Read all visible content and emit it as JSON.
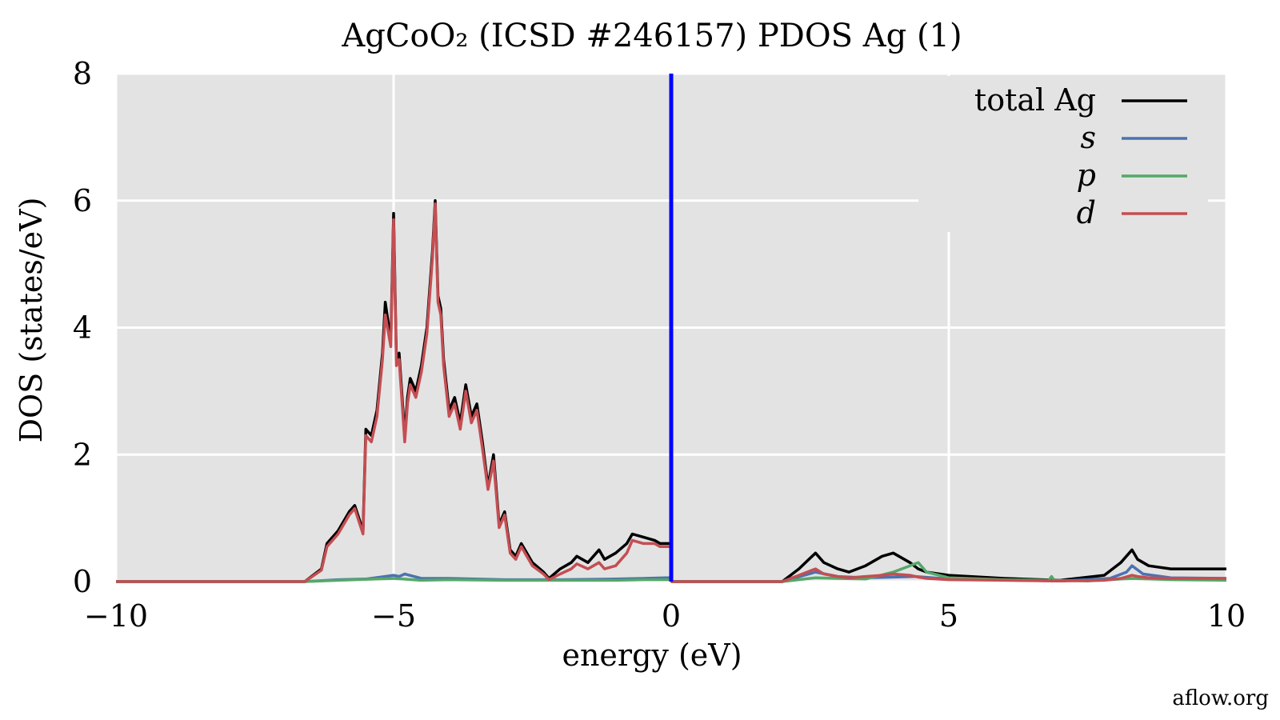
{
  "chart_data": {
    "type": "line",
    "title": "AgCoO₂ (ICSD #246157) PDOS Ag (1)",
    "xlabel": "energy (eV)",
    "ylabel": "DOS (states/eV)",
    "xlim": [
      -10,
      10
    ],
    "ylim": [
      0,
      8
    ],
    "xticks": [
      -10,
      -5,
      0,
      5,
      10
    ],
    "xtick_labels": [
      "−10",
      "−5",
      "0",
      "5",
      "10"
    ],
    "yticks": [
      0,
      2,
      4,
      6,
      8
    ],
    "ytick_labels": [
      "0",
      "2",
      "4",
      "6",
      "8"
    ],
    "grid": true,
    "legend_position": "top-right",
    "fermi_level": 0,
    "fermi_color": "#0000ff",
    "background": "#e3e3e3",
    "series": [
      {
        "name": "total Ag",
        "color": "#000000",
        "x": [
          -10,
          -6.6,
          -6.3,
          -6.2,
          -6.0,
          -5.8,
          -5.7,
          -5.55,
          -5.5,
          -5.4,
          -5.3,
          -5.2,
          -5.15,
          -5.05,
          -5.0,
          -4.95,
          -4.9,
          -4.8,
          -4.75,
          -4.7,
          -4.6,
          -4.5,
          -4.4,
          -4.3,
          -4.25,
          -4.2,
          -4.15,
          -4.1,
          -4.0,
          -3.9,
          -3.8,
          -3.7,
          -3.6,
          -3.5,
          -3.4,
          -3.3,
          -3.2,
          -3.1,
          -3.0,
          -2.9,
          -2.8,
          -2.7,
          -2.5,
          -2.3,
          -2.2,
          -2.0,
          -1.8,
          -1.7,
          -1.5,
          -1.3,
          -1.2,
          -1.0,
          -0.8,
          -0.7,
          -0.5,
          -0.3,
          -0.2,
          0.0,
          0.01,
          2.0,
          2.3,
          2.6,
          2.75,
          3.0,
          3.2,
          3.5,
          3.8,
          4.0,
          4.3,
          4.45,
          4.6,
          5.0,
          6.0,
          7.0,
          7.8,
          8.1,
          8.3,
          8.4,
          8.6,
          9.0,
          9.5,
          10
        ],
        "y": [
          0,
          0,
          0.2,
          0.6,
          0.8,
          1.1,
          1.2,
          0.8,
          2.4,
          2.3,
          2.7,
          3.6,
          4.4,
          3.8,
          5.8,
          3.5,
          3.6,
          2.3,
          2.9,
          3.2,
          3.0,
          3.4,
          4.0,
          5.2,
          6.0,
          4.5,
          4.3,
          3.5,
          2.7,
          2.9,
          2.5,
          3.1,
          2.6,
          2.8,
          2.2,
          1.5,
          2.0,
          0.9,
          1.1,
          0.5,
          0.4,
          0.6,
          0.3,
          0.15,
          0.05,
          0.2,
          0.3,
          0.4,
          0.3,
          0.5,
          0.35,
          0.45,
          0.6,
          0.75,
          0.7,
          0.65,
          0.6,
          0.6,
          0,
          0,
          0.2,
          0.45,
          0.3,
          0.2,
          0.15,
          0.25,
          0.4,
          0.45,
          0.3,
          0.2,
          0.15,
          0.1,
          0.05,
          0.02,
          0.1,
          0.3,
          0.5,
          0.35,
          0.25,
          0.2,
          0.2,
          0.2
        ]
      },
      {
        "name": "s",
        "color": "#4c72b0",
        "x": [
          -10,
          -6.6,
          -6.0,
          -5.5,
          -5.0,
          -4.9,
          -4.8,
          -4.5,
          -4.0,
          -3.0,
          -2.0,
          -1.0,
          -0.5,
          -0.1,
          0.0,
          0.01,
          2.0,
          2.6,
          3.0,
          3.5,
          4.0,
          4.4,
          5.0,
          7.0,
          7.9,
          8.2,
          8.3,
          8.5,
          9.0,
          10
        ],
        "y": [
          0,
          0,
          0.03,
          0.04,
          0.1,
          0.08,
          0.12,
          0.05,
          0.05,
          0.03,
          0.03,
          0.04,
          0.05,
          0.06,
          0.06,
          0,
          0,
          0.15,
          0.08,
          0.06,
          0.07,
          0.08,
          0.04,
          0.01,
          0.05,
          0.15,
          0.25,
          0.12,
          0.06,
          0.05
        ]
      },
      {
        "name": "p",
        "color": "#55a868",
        "x": [
          -10,
          -6.6,
          -6.0,
          -5.0,
          -4.5,
          -4.0,
          -3.0,
          -2.0,
          -1.0,
          -0.5,
          0.0,
          0.01,
          2.0,
          2.6,
          3.0,
          3.5,
          4.0,
          4.3,
          4.45,
          4.6,
          5.0,
          6.0,
          6.8,
          6.85,
          6.9,
          7.5,
          8.3,
          9.0,
          10
        ],
        "y": [
          0,
          0,
          0.02,
          0.05,
          0.02,
          0.03,
          0.02,
          0.02,
          0.02,
          0.03,
          0.03,
          0,
          0,
          0.06,
          0.05,
          0.04,
          0.15,
          0.25,
          0.3,
          0.15,
          0.06,
          0.03,
          0.02,
          0.08,
          0.02,
          0.01,
          0.05,
          0.03,
          0.02
        ]
      },
      {
        "name": "d",
        "color": "#c44e52",
        "x": [
          -10,
          -6.6,
          -6.3,
          -6.2,
          -6.0,
          -5.8,
          -5.7,
          -5.55,
          -5.5,
          -5.4,
          -5.3,
          -5.2,
          -5.15,
          -5.05,
          -5.0,
          -4.95,
          -4.9,
          -4.8,
          -4.75,
          -4.7,
          -4.6,
          -4.5,
          -4.4,
          -4.3,
          -4.25,
          -4.2,
          -4.15,
          -4.1,
          -4.0,
          -3.9,
          -3.8,
          -3.7,
          -3.6,
          -3.5,
          -3.4,
          -3.3,
          -3.2,
          -3.1,
          -3.0,
          -2.9,
          -2.8,
          -2.7,
          -2.5,
          -2.3,
          -2.2,
          -2.0,
          -1.8,
          -1.7,
          -1.5,
          -1.3,
          -1.2,
          -1.0,
          -0.8,
          -0.7,
          -0.5,
          -0.3,
          -0.2,
          0.0,
          0.01,
          2.0,
          2.3,
          2.6,
          2.75,
          3.0,
          3.2,
          3.5,
          3.8,
          4.0,
          4.3,
          4.45,
          4.6,
          5.0,
          6.0,
          7.0,
          7.8,
          8.1,
          8.3,
          8.4,
          8.6,
          9.0,
          9.5,
          10
        ],
        "y": [
          0,
          0,
          0.18,
          0.55,
          0.75,
          1.05,
          1.15,
          0.75,
          2.3,
          2.2,
          2.6,
          3.5,
          4.2,
          3.7,
          5.7,
          3.4,
          3.5,
          2.2,
          2.8,
          3.1,
          2.9,
          3.3,
          3.9,
          5.1,
          5.95,
          4.4,
          4.2,
          3.4,
          2.6,
          2.8,
          2.4,
          3.0,
          2.5,
          2.7,
          2.1,
          1.45,
          1.9,
          0.85,
          1.05,
          0.45,
          0.35,
          0.55,
          0.25,
          0.12,
          0.03,
          0.12,
          0.2,
          0.28,
          0.2,
          0.3,
          0.2,
          0.25,
          0.45,
          0.65,
          0.6,
          0.6,
          0.55,
          0.55,
          0,
          0,
          0.1,
          0.2,
          0.12,
          0.08,
          0.06,
          0.08,
          0.1,
          0.12,
          0.1,
          0.07,
          0.05,
          0.03,
          0.02,
          0.01,
          0.02,
          0.05,
          0.1,
          0.08,
          0.06,
          0.05,
          0.05,
          0.05
        ]
      }
    ]
  },
  "watermark": "aflow.org"
}
